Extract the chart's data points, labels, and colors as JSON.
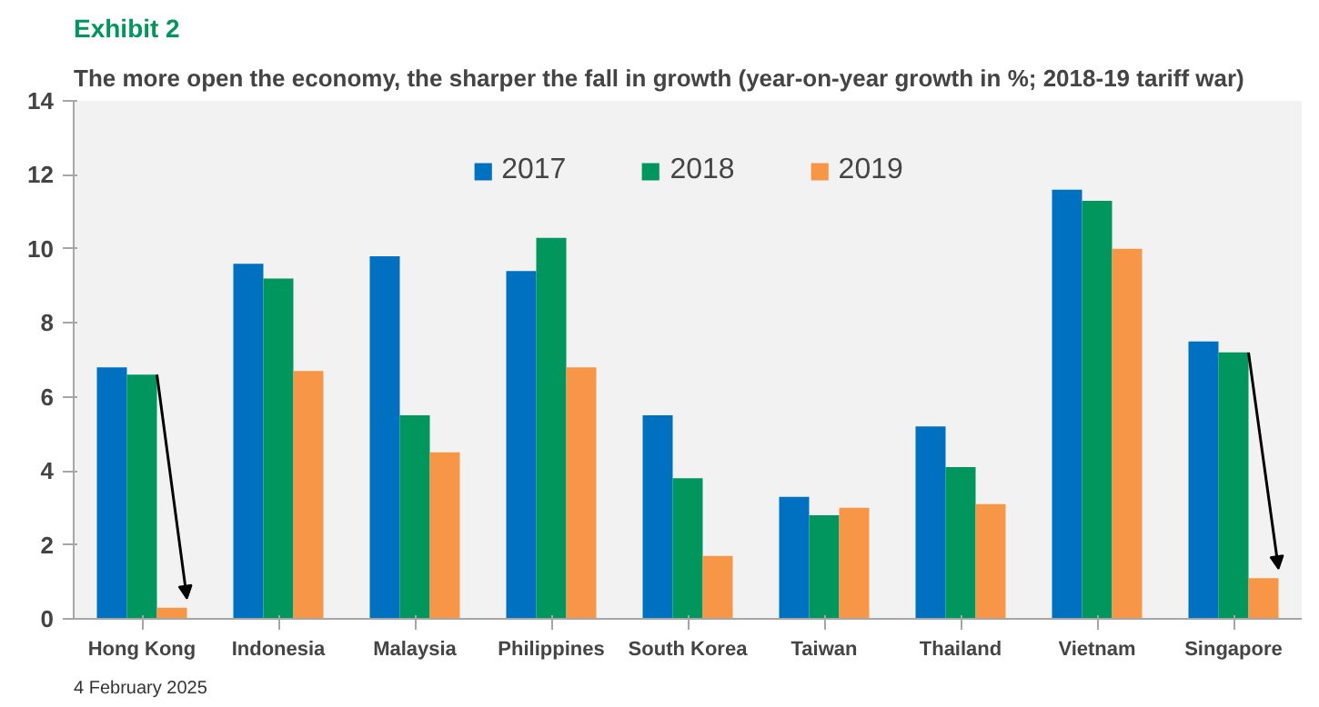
{
  "chart_data": {
    "type": "bar",
    "title": "Exhibit 2",
    "subtitle": "The more open the economy, the sharper the fall in growth (year-on-year growth in %; 2018-19 tariff war)",
    "categories": [
      "Hong Kong",
      "Indonesia",
      "Malaysia",
      "Philippines",
      "South Korea",
      "Taiwan",
      "Thailand",
      "Vietnam",
      "Singapore"
    ],
    "series": [
      {
        "name": "2017",
        "color": "#0070c0",
        "values": [
          6.8,
          9.6,
          9.8,
          9.4,
          5.5,
          3.3,
          5.2,
          11.6,
          7.5
        ]
      },
      {
        "name": "2018",
        "color": "#00965e",
        "values": [
          6.6,
          9.2,
          5.5,
          10.3,
          3.8,
          2.8,
          4.1,
          11.3,
          7.2
        ]
      },
      {
        "name": "2019",
        "color": "#f79646",
        "values": [
          0.3,
          6.7,
          4.5,
          6.8,
          1.7,
          3.0,
          3.1,
          10.0,
          1.1
        ]
      }
    ],
    "ylim": [
      0,
      14
    ],
    "yticks": [
      0,
      2,
      4,
      6,
      8,
      10,
      12,
      14
    ],
    "grid": false,
    "legend": "top",
    "annotations": [
      "4 February 2025"
    ]
  }
}
